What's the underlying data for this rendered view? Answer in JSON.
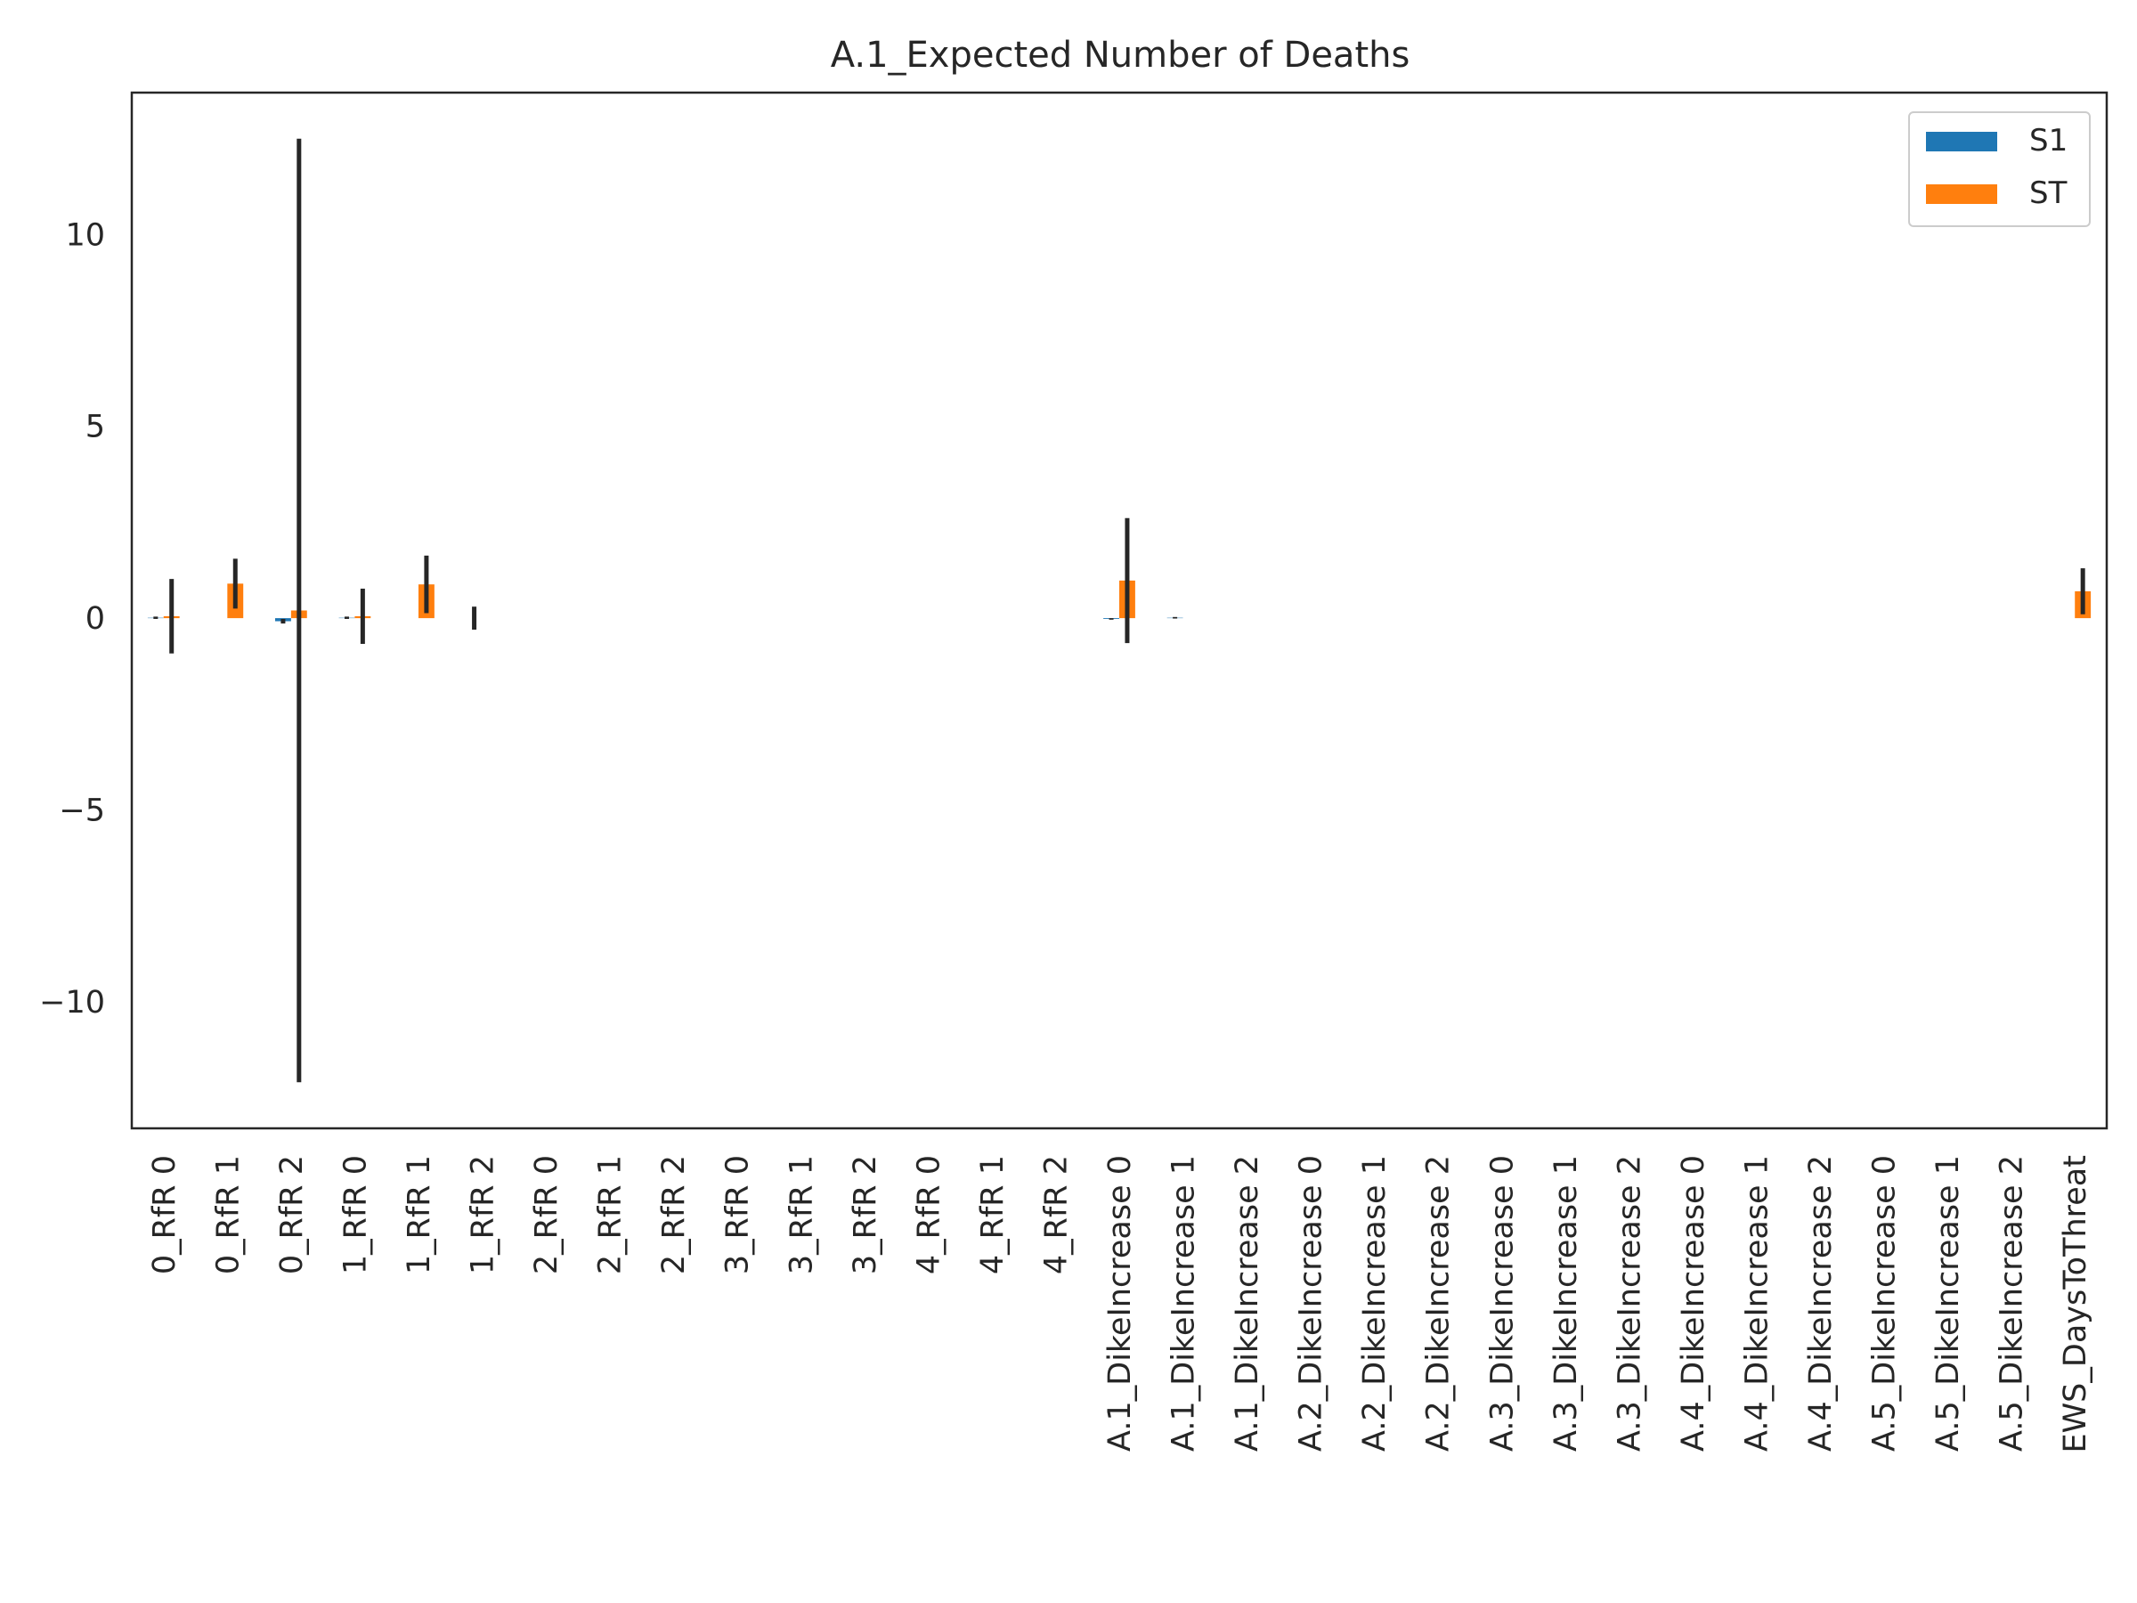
{
  "chart_data": {
    "type": "bar",
    "title": "A.1_Expected Number of Deaths",
    "xlabel": "",
    "ylabel": "",
    "ylim": [
      -13.3,
      13.7
    ],
    "yticks": [
      -10,
      -5,
      0,
      5,
      10
    ],
    "ytick_labels": [
      "−10",
      "−5",
      "0",
      "5",
      "10"
    ],
    "grid": false,
    "legend_position": "top-right",
    "categories": [
      "0_RfR 0",
      "0_RfR 1",
      "0_RfR 2",
      "1_RfR 0",
      "1_RfR 1",
      "1_RfR 2",
      "2_RfR 0",
      "2_RfR 1",
      "2_RfR 2",
      "3_RfR 0",
      "3_RfR 1",
      "3_RfR 2",
      "4_RfR 0",
      "4_RfR 1",
      "4_RfR 2",
      "A.1_DikeIncrease 0",
      "A.1_DikeIncrease 1",
      "A.1_DikeIncrease 2",
      "A.2_DikeIncrease 0",
      "A.2_DikeIncrease 1",
      "A.2_DikeIncrease 2",
      "A.3_DikeIncrease 0",
      "A.3_DikeIncrease 1",
      "A.3_DikeIncrease 2",
      "A.4_DikeIncrease 0",
      "A.4_DikeIncrease 1",
      "A.4_DikeIncrease 2",
      "A.5_DikeIncrease 0",
      "A.5_DikeIncrease 1",
      "A.5_DikeIncrease 2",
      "EWS_DaysToThreat"
    ],
    "series": [
      {
        "name": "S1",
        "color": "#1f77b4",
        "values": [
          0.01,
          0,
          -0.08,
          0.01,
          0,
          0.0,
          0,
          0,
          0,
          0,
          0,
          0,
          0,
          0,
          0,
          -0.02,
          0.01,
          0,
          0,
          0,
          0,
          0,
          0,
          0,
          0,
          0,
          0,
          0,
          0,
          0,
          0
        ],
        "errors": [
          0.03,
          0,
          0.06,
          0.03,
          0,
          0.3,
          0,
          0,
          0,
          0,
          0,
          0,
          0,
          0,
          0,
          0.02,
          0.02,
          0,
          0,
          0,
          0,
          0,
          0,
          0,
          0,
          0,
          0,
          0,
          0,
          0,
          0
        ]
      },
      {
        "name": "ST",
        "color": "#ff7f0e",
        "values": [
          0.05,
          0.9,
          0.2,
          0.05,
          0.88,
          0,
          0,
          0,
          0,
          0,
          0,
          0,
          0,
          0,
          0,
          0.98,
          0,
          0,
          0,
          0,
          0,
          0,
          0,
          0,
          0,
          0,
          0,
          0,
          0,
          0,
          0.7
        ],
        "errors": [
          0.97,
          0.65,
          12.3,
          0.72,
          0.75,
          0,
          0,
          0,
          0,
          0,
          0,
          0,
          0,
          0,
          0,
          1.63,
          0,
          0,
          0,
          0,
          0,
          0,
          0,
          0,
          0,
          0,
          0,
          0,
          0,
          0,
          0.6
        ]
      }
    ]
  }
}
